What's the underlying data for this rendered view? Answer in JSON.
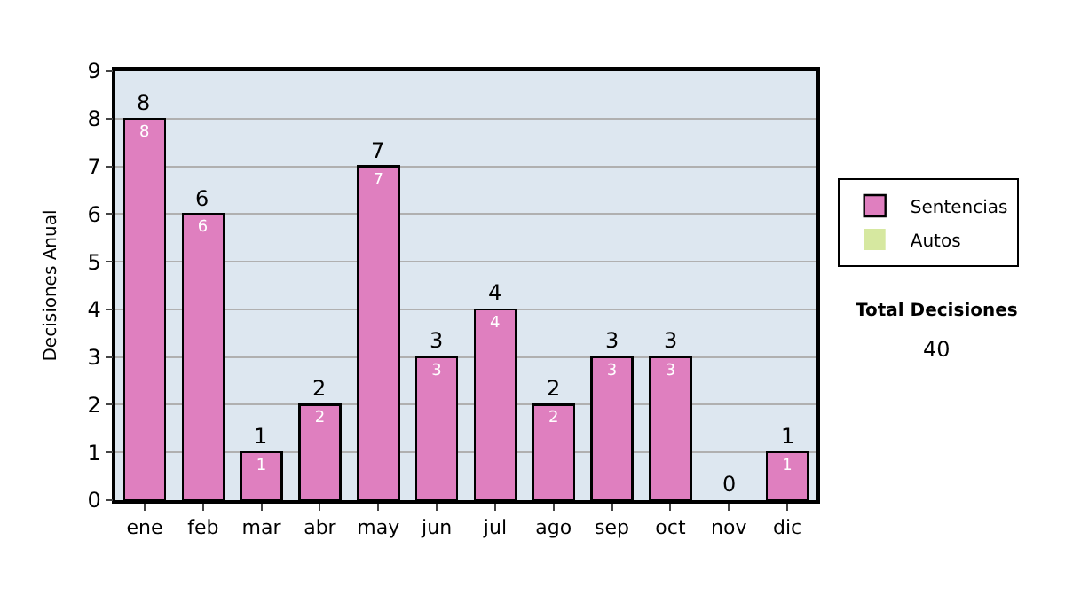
{
  "chart_data": {
    "type": "bar",
    "stacked": true,
    "ylabel": "Decisiones Anual",
    "categories": [
      "ene",
      "feb",
      "mar",
      "abr",
      "may",
      "jun",
      "jul",
      "ago",
      "sep",
      "oct",
      "nov",
      "dic"
    ],
    "series": [
      {
        "name": "Sentencias",
        "color": "#df7fbf",
        "values": [
          8,
          6,
          1,
          2,
          7,
          3,
          4,
          2,
          3,
          3,
          0,
          1
        ],
        "value_labels": [
          "8",
          "6",
          "1",
          "2",
          "7",
          "3",
          "4",
          "2",
          "3",
          "3",
          null,
          "1"
        ]
      },
      {
        "name": "Autos",
        "color": "#d6e8a0",
        "values": [
          0,
          0,
          0,
          0,
          0,
          0,
          0,
          0,
          0,
          0,
          0,
          0
        ]
      }
    ],
    "totals": [
      "8",
      "6",
      "1",
      "2",
      "7",
      "3",
      "4",
      "2",
      "3",
      "3",
      "0",
      "1"
    ],
    "ylim": [
      0,
      9
    ],
    "yticks": [
      0,
      1,
      2,
      3,
      4,
      5,
      6,
      7,
      8,
      9
    ],
    "grid": "y",
    "legend": "right",
    "annotations": [
      "Total Decisiones",
      "40"
    ]
  }
}
